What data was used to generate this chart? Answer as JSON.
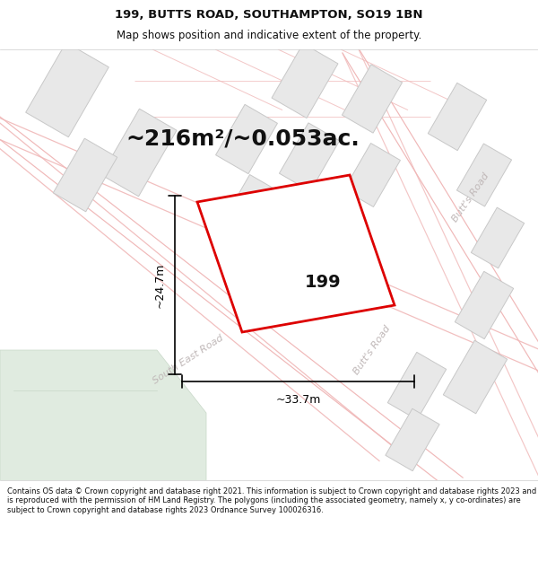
{
  "title_line1": "199, BUTTS ROAD, SOUTHAMPTON, SO19 1BN",
  "title_line2": "Map shows position and indicative extent of the property.",
  "area_label": "~216m²/~0.053ac.",
  "property_number": "199",
  "dim_width": "~33.7m",
  "dim_height": "~24.7m",
  "road_label_butts_right": "Butt's Road",
  "road_label_butts_center": "Butt's Road",
  "road_label_south_east": "South East Road",
  "footer_text": "Contains OS data © Crown copyright and database right 2021. This information is subject to Crown copyright and database rights 2023 and is reproduced with the permission of HM Land Registry. The polygons (including the associated geometry, namely x, y co-ordinates) are subject to Crown copyright and database rights 2023 Ordnance Survey 100026316.",
  "map_bg": "#f7f6f6",
  "road_line_color": "#f0b8b8",
  "building_fill": "#e8e8e8",
  "building_edge": "#c8c8c8",
  "plot_color": "#dd0000",
  "plot_fill": "#ffffff",
  "dim_color": "#000000",
  "text_dark": "#111111",
  "text_road": "#c0b8b8",
  "green_fill": "#e0ebe0",
  "green_edge": "#c8d8c8",
  "title_fontsize": 9.5,
  "subtitle_fontsize": 8.5,
  "area_fontsize": 18,
  "dim_fontsize": 9,
  "road_label_fontsize": 8,
  "prop_num_fontsize": 14,
  "footer_fontsize": 6.0
}
